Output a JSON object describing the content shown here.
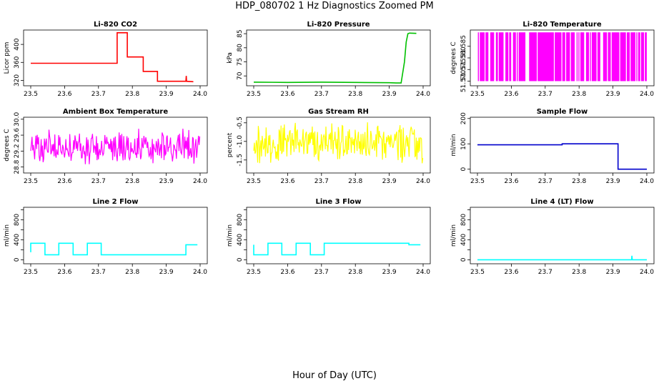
{
  "figure": {
    "title": "HDP_080702  1 Hz Diagnostics Zoomed PM",
    "xlabel": "Hour of Day (UTC)"
  },
  "chart_data": [
    {
      "type": "line",
      "title": "Li-820 CO2",
      "xlabel": "",
      "ylabel": "Licor ppm",
      "color": "#ff0000",
      "xlim": [
        23.5,
        24.0
      ],
      "xticks": [
        "23.5",
        "23.6",
        "23.7",
        "23.8",
        "23.9",
        "24.0"
      ],
      "ylim": [
        308,
        432
      ],
      "yticks": [
        320,
        360,
        400
      ],
      "ytick_labels": [
        "320",
        "360",
        "400"
      ],
      "series": [
        {
          "x": [
            23.5,
            23.755,
            23.755,
            23.785,
            23.785,
            23.832,
            23.832,
            23.874,
            23.874,
            23.958,
            23.959,
            23.96,
            23.98
          ],
          "y": [
            358,
            358,
            426,
            426,
            372,
            372,
            340,
            340,
            318,
            318,
            330,
            318,
            317
          ]
        }
      ]
    },
    {
      "type": "line",
      "title": "Li-820 Pressure",
      "xlabel": "",
      "ylabel": "kPa",
      "color": "#00c000",
      "xlim": [
        23.5,
        24.0
      ],
      "xticks": [
        "23.5",
        "23.6",
        "23.7",
        "23.8",
        "23.9",
        "24.0"
      ],
      "ylim": [
        66.5,
        86.3
      ],
      "yticks": [
        70,
        75,
        80,
        85
      ],
      "ytick_labels": [
        "70",
        "75",
        "80",
        "85"
      ],
      "series": [
        {
          "x": [
            23.5,
            23.6,
            23.7,
            23.8,
            23.9,
            23.92,
            23.935,
            23.945,
            23.95,
            23.955,
            23.96,
            23.98
          ],
          "y": [
            67.8,
            67.7,
            67.8,
            67.7,
            67.6,
            67.5,
            67.5,
            75,
            82,
            85,
            85.2,
            85.1
          ]
        }
      ]
    },
    {
      "type": "line",
      "title": "Li-820 Temperature",
      "xlabel": "",
      "ylabel": "degrees C",
      "color": "#ff00ff",
      "xlim": [
        23.5,
        24.0
      ],
      "xticks": [
        "23.5",
        "23.6",
        "23.7",
        "23.8",
        "23.9",
        "24.0"
      ],
      "ylim": [
        51.568,
        51.592
      ],
      "yticks": [
        51.57,
        51.575,
        51.58,
        51.585
      ],
      "ytick_labels": [
        "51.570",
        "51.575",
        "51.580",
        "51.585"
      ],
      "note": "value toggles between 51.570 and 51.591"
    },
    {
      "type": "line",
      "title": "Ambient Box Temperature",
      "xlabel": "",
      "ylabel": "degrees C",
      "color": "#ff00ff",
      "xlim": [
        23.5,
        24.0
      ],
      "xticks": [
        "23.5",
        "23.6",
        "23.7",
        "23.8",
        "23.9",
        "24.0"
      ],
      "ylim": [
        28.65,
        30.05
      ],
      "yticks": [
        28.8,
        29.2,
        29.6,
        30.0
      ],
      "ytick_labels": [
        "28.8",
        "29.2",
        "29.6",
        "30.0"
      ],
      "noise": {
        "mean": 29.3,
        "halfwidth": 0.45
      }
    },
    {
      "type": "line",
      "title": "Gas Stream RH",
      "xlabel": "",
      "ylabel": "percent",
      "color": "#ffff00",
      "xlim": [
        23.5,
        24.0
      ],
      "xticks": [
        "23.5",
        "23.6",
        "23.7",
        "23.8",
        "23.9",
        "24.0"
      ],
      "ylim": [
        -1.85,
        -0.35
      ],
      "yticks": [
        -1.5,
        -1.0,
        -0.5
      ],
      "ytick_labels": [
        "-1.5",
        "-1.0",
        "-0.5"
      ],
      "noise": {
        "mean": -1.05,
        "halfwidth": 0.55
      }
    },
    {
      "type": "line",
      "title": "Sample Flow",
      "xlabel": "",
      "ylabel": "ml/min",
      "color": "#0000cc",
      "xlim": [
        23.5,
        24.0
      ],
      "xticks": [
        "23.5",
        "23.6",
        "23.7",
        "23.8",
        "23.9",
        "24.0"
      ],
      "ylim": [
        -15,
        205
      ],
      "yticks": [
        0,
        100,
        200
      ],
      "ytick_labels": [
        "0",
        "100",
        "200"
      ],
      "series": [
        {
          "x": [
            23.5,
            23.75,
            23.75,
            23.915,
            23.915,
            24.0
          ],
          "y": [
            96,
            96,
            100,
            100,
            0,
            0
          ]
        }
      ]
    },
    {
      "type": "line",
      "title": "Line 2 Flow",
      "xlabel": "",
      "ylabel": "ml/min",
      "color": "#00ffff",
      "xlim": [
        23.5,
        24.0
      ],
      "xticks": [
        "23.5",
        "23.6",
        "23.7",
        "23.8",
        "23.9",
        "24.0"
      ],
      "ylim": [
        -80,
        1050
      ],
      "yticks": [
        0,
        200,
        400,
        600,
        800,
        1000
      ],
      "ytick_labels": [
        "0",
        "",
        "400",
        "",
        "800",
        ""
      ],
      "series": [
        {
          "x": [
            23.5,
            23.5,
            23.542,
            23.542,
            23.583,
            23.583,
            23.625,
            23.625,
            23.667,
            23.667,
            23.708,
            23.708,
            23.958,
            23.958,
            23.992
          ],
          "y": [
            150,
            330,
            330,
            100,
            100,
            330,
            330,
            100,
            100,
            330,
            330,
            100,
            100,
            300,
            300
          ]
        }
      ]
    },
    {
      "type": "line",
      "title": "Line 3 Flow",
      "xlabel": "",
      "ylabel": "ml/min",
      "color": "#00ffff",
      "xlim": [
        23.5,
        24.0
      ],
      "xticks": [
        "23.5",
        "23.6",
        "23.7",
        "23.8",
        "23.9",
        "24.0"
      ],
      "ylim": [
        -80,
        1050
      ],
      "yticks": [
        0,
        200,
        400,
        600,
        800,
        1000
      ],
      "ytick_labels": [
        "0",
        "",
        "400",
        "",
        "800",
        ""
      ],
      "series": [
        {
          "x": [
            23.5,
            23.5,
            23.5,
            23.542,
            23.542,
            23.583,
            23.583,
            23.625,
            23.625,
            23.667,
            23.667,
            23.708,
            23.708,
            23.958,
            23.958,
            23.992
          ],
          "y": [
            300,
            100,
            100,
            100,
            330,
            330,
            100,
            100,
            330,
            330,
            100,
            100,
            330,
            330,
            300,
            300
          ]
        }
      ]
    },
    {
      "type": "line",
      "title": "Line 4 (LT) Flow",
      "xlabel": "",
      "ylabel": "ml/min",
      "color": "#00ffff",
      "xlim": [
        23.5,
        24.0
      ],
      "xticks": [
        "23.5",
        "23.6",
        "23.7",
        "23.8",
        "23.9",
        "24.0"
      ],
      "ylim": [
        -80,
        1050
      ],
      "yticks": [
        0,
        200,
        400,
        600,
        800,
        1000
      ],
      "ytick_labels": [
        "0",
        "",
        "400",
        "",
        "800",
        ""
      ],
      "series": [
        {
          "x": [
            23.5,
            23.955,
            23.956,
            23.957,
            23.958,
            24.0
          ],
          "y": [
            0,
            0,
            80,
            0,
            0,
            0
          ]
        }
      ]
    }
  ]
}
